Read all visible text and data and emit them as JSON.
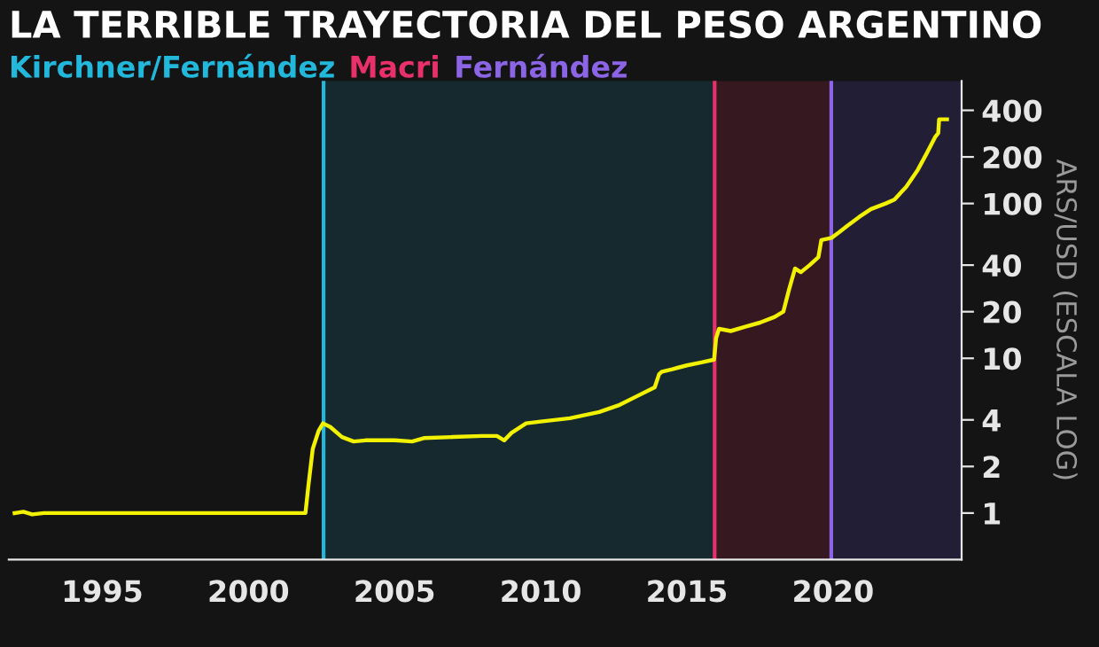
{
  "chart_data": {
    "type": "line",
    "title": "LA TERRIBLE TRAYECTORIA DEL PESO ARGENTINO",
    "y2label": "ARS/USD (ESCALA LOG)",
    "log": "y2",
    "grid": false,
    "legend": false,
    "series": [
      {
        "color": "#f2f200",
        "axis": "y2",
        "x": [
          1992.0,
          1992.3,
          1992.6,
          1993.0,
          1995.0,
          2000.0,
          2001.95,
          2002.05,
          2002.2,
          2002.4,
          2002.55,
          2002.8,
          2003.2,
          2003.6,
          2004.0,
          2005.0,
          2005.6,
          2006.0,
          2007.0,
          2008.0,
          2008.5,
          2008.75,
          2009.0,
          2009.5,
          2010.0,
          2011.0,
          2012.0,
          2012.7,
          2013.3,
          2013.9,
          2014.05,
          2014.15,
          2014.5,
          2015.0,
          2015.5,
          2015.93,
          2016.0,
          2016.1,
          2016.5,
          2017.0,
          2017.5,
          2018.0,
          2018.3,
          2018.5,
          2018.7,
          2018.9,
          2019.2,
          2019.5,
          2019.6,
          2019.95,
          2020.2,
          2020.5,
          2020.9,
          2021.3,
          2021.8,
          2022.1,
          2022.5,
          2022.9,
          2023.2,
          2023.5,
          2023.6,
          2023.63,
          2023.9
        ],
        "values": [
          1.0,
          1.02,
          0.98,
          1.0,
          1.0,
          1.0,
          1.0,
          1.5,
          2.6,
          3.4,
          3.8,
          3.6,
          3.1,
          2.9,
          2.95,
          2.95,
          2.9,
          3.05,
          3.1,
          3.15,
          3.15,
          2.95,
          3.3,
          3.8,
          3.9,
          4.1,
          4.5,
          5.0,
          5.7,
          6.5,
          7.9,
          8.2,
          8.5,
          9.0,
          9.4,
          9.8,
          13.5,
          15.5,
          15.0,
          16.0,
          17.0,
          18.5,
          20.0,
          28.0,
          38.0,
          36.0,
          40.0,
          45.0,
          58.0,
          60.0,
          65.0,
          72.0,
          82.0,
          92.0,
          100.0,
          106.0,
          128.0,
          165.0,
          210.0,
          270.0,
          285.0,
          350.0,
          350.0
        ]
      }
    ],
    "xlim": [
      1991.8,
      2024.4
    ],
    "xticks": [
      1995,
      2000,
      2005,
      2010,
      2015,
      2020
    ],
    "y2lim": [
      0.5,
      620
    ],
    "y2ticks": [
      1,
      2,
      4,
      10,
      20,
      40,
      100,
      200,
      400
    ],
    "ref_lines": [
      {
        "axis": "x",
        "value": 2002.57,
        "label": "Kirchner/Fernández",
        "color": "#22b8dc"
      },
      {
        "axis": "x",
        "value": 2015.95,
        "label": "Macri",
        "color": "#e8306a"
      },
      {
        "axis": "x",
        "value": 2019.94,
        "label": "Fernández",
        "color": "#8c64e6"
      }
    ],
    "bands": [
      {
        "axis": "x",
        "from": 2002.57,
        "to": 2015.95,
        "color": "#15292e"
      },
      {
        "axis": "x",
        "from": 2015.95,
        "to": 2019.94,
        "color": "#351820"
      },
      {
        "axis": "x",
        "from": 2019.94,
        "to": 2024.4,
        "color": "#211e36"
      }
    ]
  }
}
